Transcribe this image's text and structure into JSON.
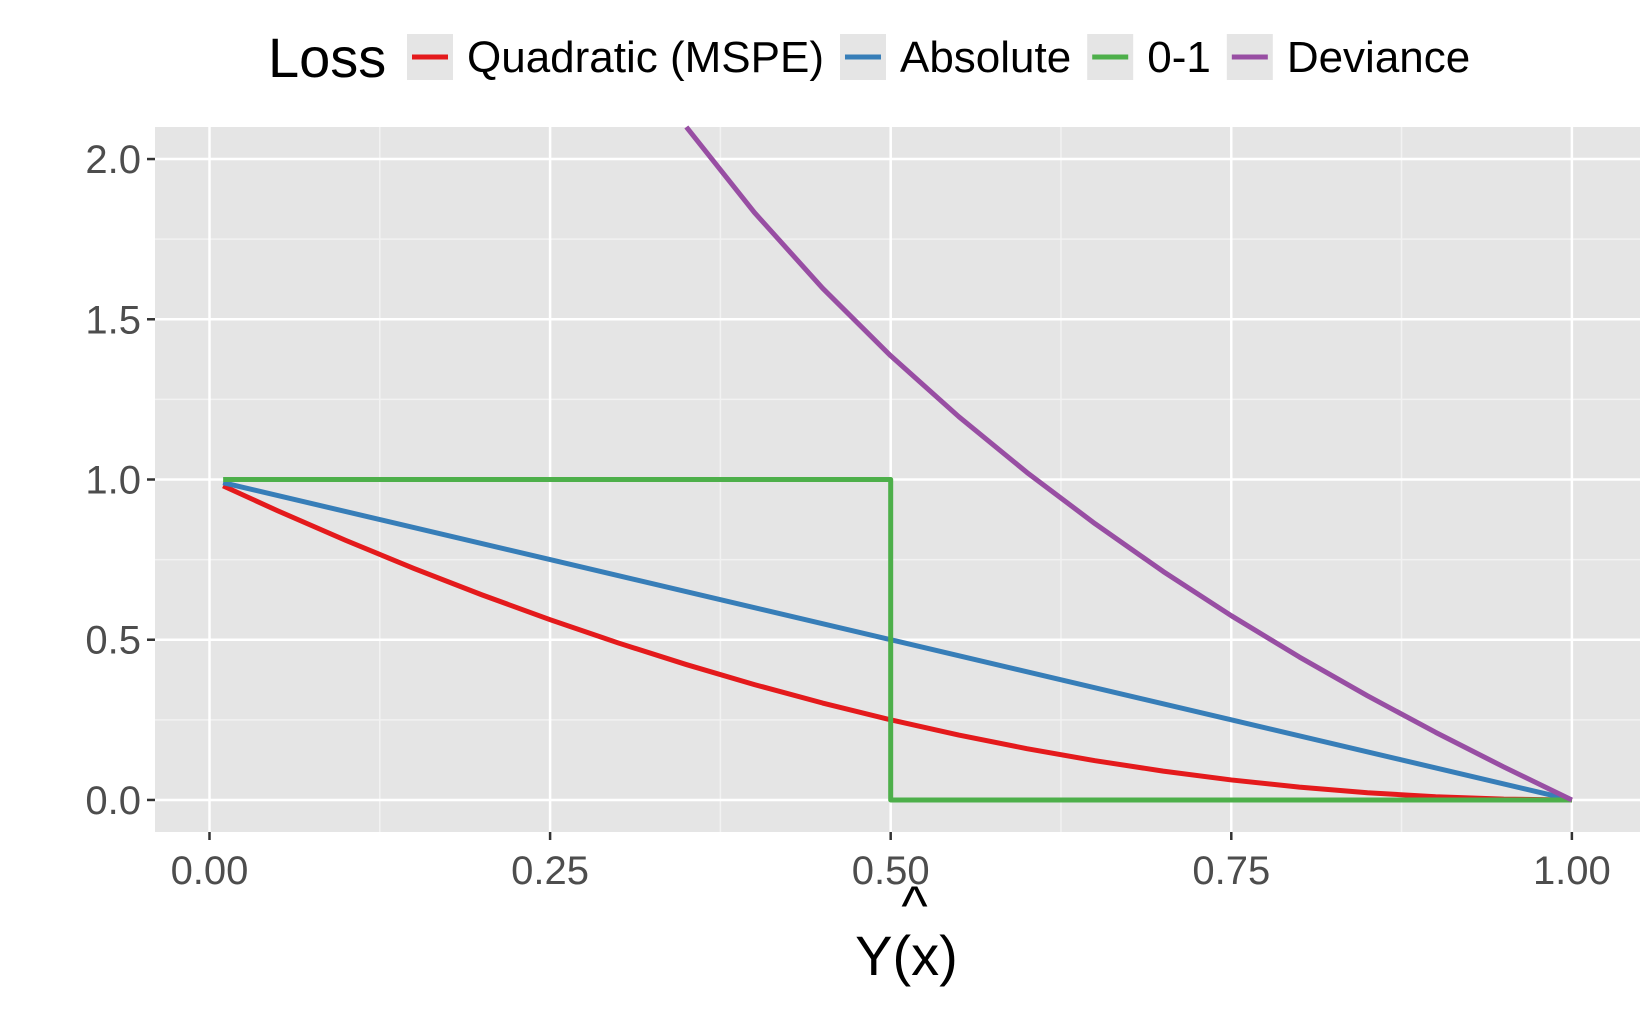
{
  "chart_data": {
    "type": "line",
    "title": "",
    "xlabel": "Y^(x)",
    "ylabel": "",
    "xlim": [
      -0.04,
      1.05
    ],
    "ylim": [
      -0.1,
      2.1
    ],
    "grid": true,
    "legend_position": "top",
    "legend_title": "Loss",
    "x_ticks": [
      "0.00",
      "0.25",
      "0.50",
      "0.75",
      "1.00"
    ],
    "y_ticks": [
      "0.0",
      "0.5",
      "1.0",
      "1.5",
      "2.0"
    ],
    "series": [
      {
        "name": "Quadratic (MSPE)",
        "color": "#e41a1c",
        "x": [
          0.01,
          0.05,
          0.1,
          0.15,
          0.2,
          0.25,
          0.3,
          0.35,
          0.4,
          0.45,
          0.5,
          0.55,
          0.6,
          0.65,
          0.7,
          0.75,
          0.8,
          0.85,
          0.9,
          0.95,
          1.0
        ],
        "y": [
          0.98,
          0.9025,
          0.81,
          0.7225,
          0.64,
          0.5625,
          0.49,
          0.4225,
          0.36,
          0.3025,
          0.25,
          0.2025,
          0.16,
          0.1225,
          0.09,
          0.0625,
          0.04,
          0.0225,
          0.01,
          0.0025,
          0.0
        ]
      },
      {
        "name": "Absolute",
        "color": "#377eb8",
        "x": [
          0.01,
          0.25,
          0.5,
          0.75,
          1.0
        ],
        "y": [
          0.99,
          0.75,
          0.5,
          0.25,
          0.0
        ]
      },
      {
        "name": "0-1",
        "color": "#4daf4a",
        "x": [
          0.01,
          0.5,
          0.5,
          1.0
        ],
        "y": [
          1.0,
          1.0,
          0.0,
          0.0
        ]
      },
      {
        "name": "Deviance",
        "color": "#984ea3",
        "x": [
          0.35,
          0.4,
          0.45,
          0.5,
          0.55,
          0.6,
          0.65,
          0.7,
          0.75,
          0.8,
          0.85,
          0.9,
          0.95,
          1.0
        ],
        "y": [
          2.1,
          1.833,
          1.597,
          1.386,
          1.196,
          1.022,
          0.862,
          0.713,
          0.575,
          0.446,
          0.325,
          0.211,
          0.103,
          0.0
        ]
      }
    ]
  }
}
